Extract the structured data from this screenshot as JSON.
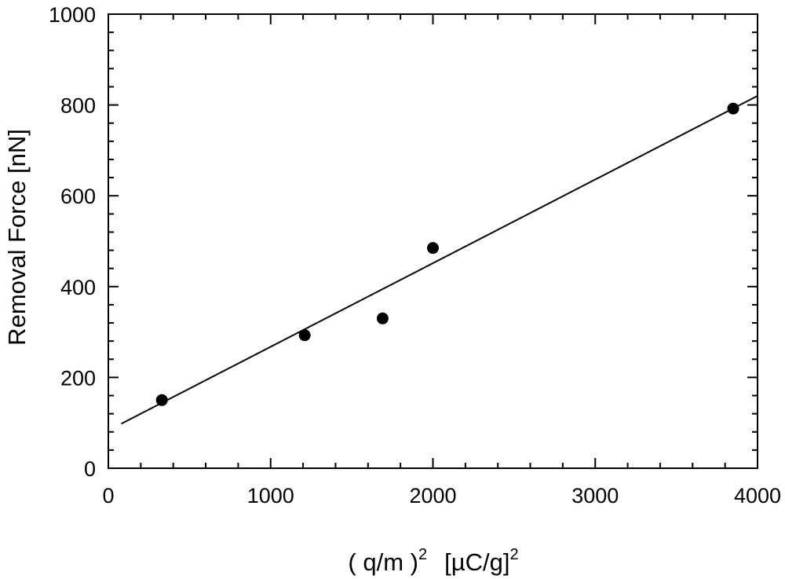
{
  "chart_data": {
    "type": "scatter",
    "xlabel": {
      "base": "( q/m )",
      "sup1": "2",
      "unit": "[µC/g]",
      "sup2": "2"
    },
    "ylabel": "Removal Force  [nN]",
    "xlim": [
      0,
      4000
    ],
    "ylim": [
      0,
      1000
    ],
    "x_ticks": [
      0,
      1000,
      2000,
      3000,
      4000
    ],
    "y_ticks": [
      0,
      200,
      400,
      600,
      800,
      1000
    ],
    "x_tick_labels": [
      "0",
      "1000",
      "2000",
      "3000",
      "4000"
    ],
    "y_tick_labels": [
      "0",
      "200",
      "400",
      "600",
      "800",
      "1000"
    ],
    "x_minor_step": 200,
    "y_minor_step": 40,
    "grid": false,
    "series": [
      {
        "points": [
          {
            "x": 330,
            "y": 150
          },
          {
            "x": 1210,
            "y": 293
          },
          {
            "x": 1690,
            "y": 330
          },
          {
            "x": 2000,
            "y": 485
          },
          {
            "x": 3850,
            "y": 792
          }
        ]
      }
    ],
    "fit_line": {
      "x": [
        80,
        4000
      ],
      "y": [
        98,
        820
      ]
    },
    "colors": {
      "marker": "#000000",
      "line": "#000000",
      "axes": "#000000"
    }
  }
}
